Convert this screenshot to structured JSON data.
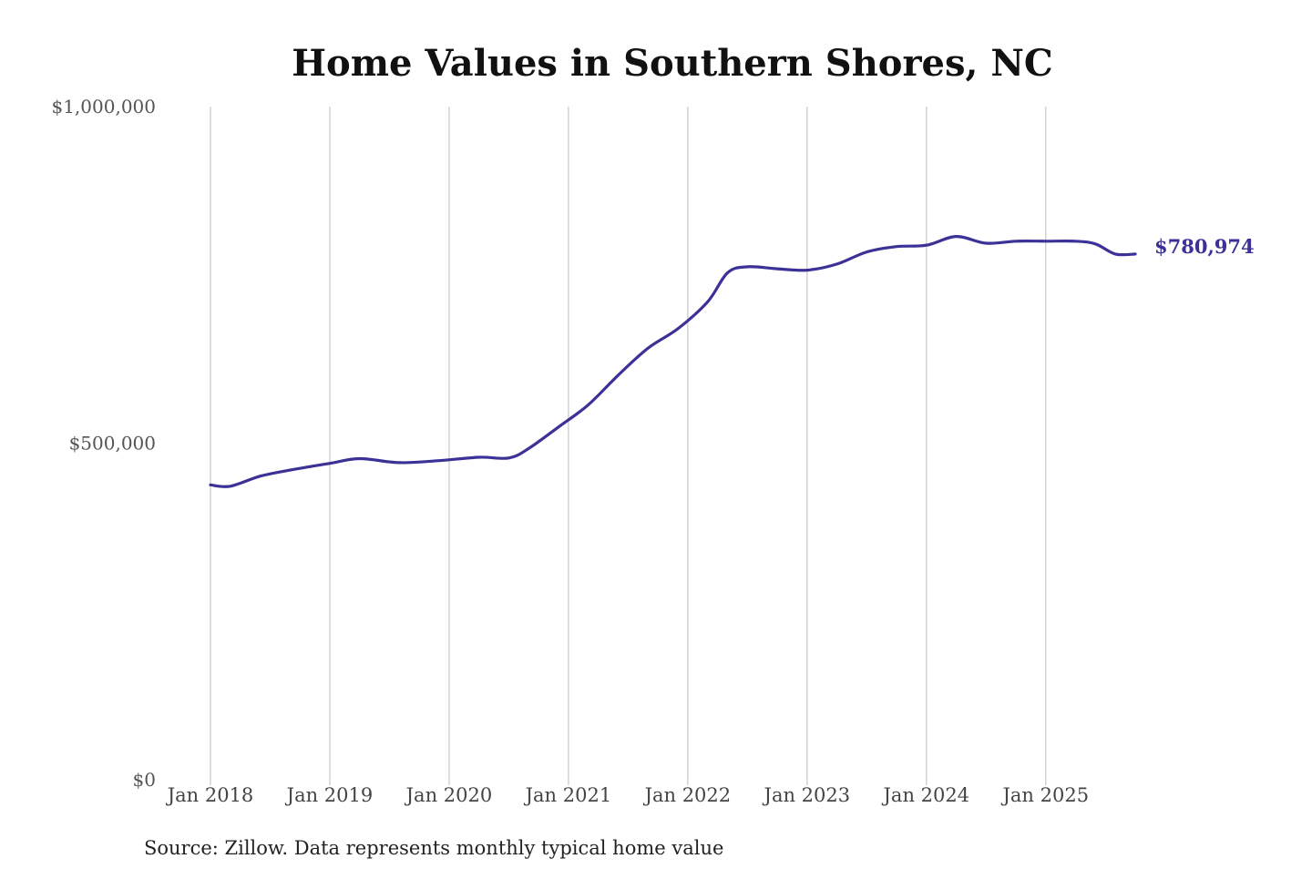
{
  "chart_data": {
    "type": "line",
    "title": "Home Values in Southern Shores, NC",
    "source": "Source: Zillow. Data represents monthly typical home value",
    "ylim": [
      0,
      1000000
    ],
    "yticks": [
      0,
      500000,
      1000000
    ],
    "ytick_labels": [
      "$0",
      "$500,000",
      "$1,000,000"
    ],
    "xticks": [
      "2018-01",
      "2019-01",
      "2020-01",
      "2021-01",
      "2022-01",
      "2023-01",
      "2024-01",
      "2025-01"
    ],
    "xtick_labels": [
      "Jan 2018",
      "Jan 2019",
      "Jan 2020",
      "Jan 2021",
      "Jan 2022",
      "Jan 2023",
      "Jan 2024",
      "Jan 2025"
    ],
    "xlim": [
      "2018-01",
      "2025-10"
    ],
    "grid": "vertical",
    "series": [
      {
        "color": "#3b3196",
        "end_label": "$780,974",
        "x": [
          "2018-01",
          "2018-03",
          "2018-06",
          "2018-09",
          "2019-01",
          "2019-04",
          "2019-08",
          "2019-12",
          "2020-04",
          "2020-07",
          "2020-09",
          "2020-12",
          "2021-03",
          "2021-06",
          "2021-09",
          "2021-12",
          "2022-03",
          "2022-05",
          "2022-07",
          "2022-10",
          "2023-01",
          "2023-04",
          "2023-07",
          "2023-10",
          "2024-01",
          "2024-04",
          "2024-07",
          "2024-10",
          "2025-01",
          "2025-04",
          "2025-06",
          "2025-08",
          "2025-10"
        ],
        "values": [
          438000,
          436000,
          451000,
          460000,
          470000,
          477000,
          471000,
          474000,
          479000,
          478000,
          492000,
          524000,
          557000,
          601000,
          641000,
          670000,
          710000,
          753000,
          762000,
          759000,
          757000,
          766000,
          784000,
          792000,
          794000,
          807000,
          797000,
          800000,
          800000,
          800000,
          796000,
          780974,
          780974
        ]
      }
    ]
  }
}
